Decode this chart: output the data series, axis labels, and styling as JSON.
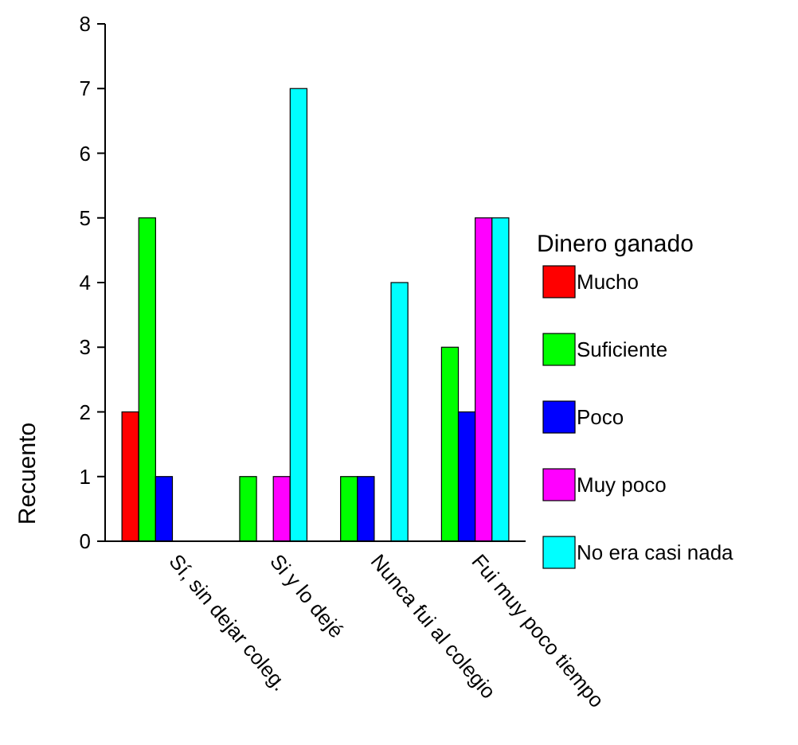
{
  "chart_data": {
    "type": "bar",
    "ylabel": "Recuento",
    "legend_title": "Dinero ganado",
    "categories": [
      "Sí, sin dejar coleg.",
      "Si y lo dejé",
      "Nunca fui al colegio",
      "Fui muy poco tiempo"
    ],
    "series": [
      {
        "name": "Mucho",
        "color": "#ff0000",
        "values": [
          2,
          0,
          0,
          0
        ]
      },
      {
        "name": "Suficiente",
        "color": "#00ff00",
        "values": [
          5,
          1,
          1,
          3
        ]
      },
      {
        "name": "Poco",
        "color": "#0000ff",
        "values": [
          1,
          0,
          1,
          2
        ]
      },
      {
        "name": "Muy poco",
        "color": "#ff00ff",
        "values": [
          0,
          1,
          0,
          5
        ]
      },
      {
        "name": "No era casi nada",
        "color": "#00ffff",
        "values": [
          0,
          7,
          4,
          5
        ]
      }
    ],
    "ylim": [
      0,
      8
    ],
    "yticks": [
      0,
      1,
      2,
      3,
      4,
      5,
      6,
      7,
      8
    ],
    "legend": "right",
    "grid": false
  }
}
